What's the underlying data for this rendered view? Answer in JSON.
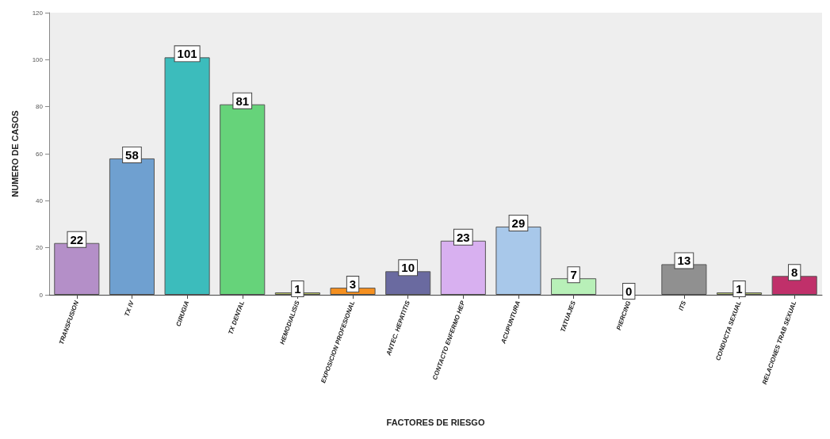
{
  "chart_data": {
    "type": "bar",
    "xlabel": "FACTORES DE RIESGO",
    "ylabel": "NUMERO DE CASOS",
    "categories": [
      "TRANSFUSION",
      "TX IV",
      "CIRUGIA",
      "TX DENTAL",
      "HEMODIALISIS",
      "EXPOSICION PROFESIONAL",
      "ANTEC. HEPATITIS",
      "CONTACTO ENFERMO HEP",
      "ACUPUNTURA",
      "TATUAJES",
      "PIERCING",
      "ITS",
      "CONDUCTA SEXUAL",
      "RELACIONES TRAB SEXUAL"
    ],
    "values": [
      22,
      58,
      101,
      81,
      1,
      3,
      10,
      23,
      29,
      7,
      0,
      13,
      1,
      8
    ],
    "colors": [
      "#b48fc8",
      "#6fa0d0",
      "#3cbcbc",
      "#66d37a",
      "#b8c466",
      "#f59020",
      "#6a6aa0",
      "#d8b0f0",
      "#a8c8ea",
      "#b8f0b8",
      "#d8d8d8",
      "#909090",
      "#b0c070",
      "#c0306a"
    ],
    "ylim": [
      0,
      120
    ],
    "yticks": [
      0,
      20,
      40,
      60,
      80,
      100,
      120
    ],
    "grid": false,
    "data_labels": true
  }
}
